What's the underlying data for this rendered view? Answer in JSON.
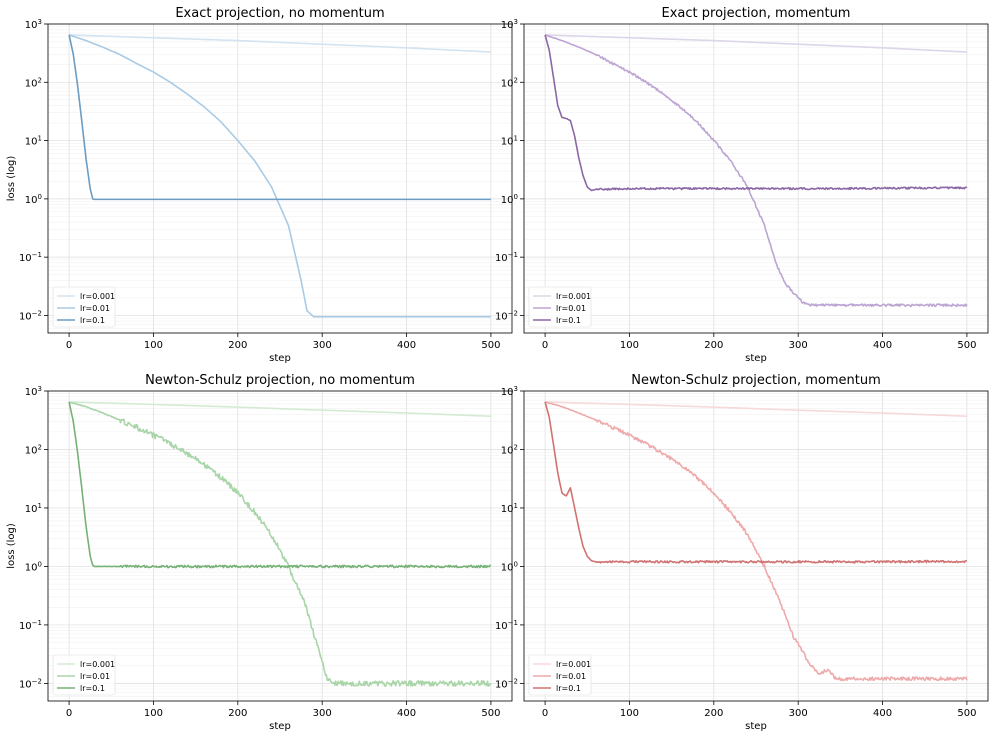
{
  "chart_data": [
    {
      "type": "line",
      "title": "Exact projection, no momentum",
      "xlabel": "step",
      "ylabel": "loss (log)",
      "yscale": "log",
      "xlim": [
        -25,
        525
      ],
      "ylim": [
        0.005,
        1000
      ],
      "xticks": [
        "0",
        "100",
        "200",
        "300",
        "400",
        "500"
      ],
      "yticks": [
        "10^3",
        "10^2",
        "10^1",
        "10^0",
        "10^-1",
        "10^-2"
      ],
      "legend": "lower-left",
      "grid": true,
      "series": [
        {
          "name": "lr=0.001",
          "color": "#d3e3f1",
          "x": [
            0,
            100,
            200,
            300,
            400,
            500
          ],
          "y": [
            650,
            580,
            520,
            450,
            390,
            330
          ]
        },
        {
          "name": "lr=0.01",
          "color": "#a9cae4",
          "x": [
            0,
            20,
            40,
            60,
            80,
            100,
            120,
            140,
            160,
            180,
            200,
            220,
            240,
            260,
            275,
            282,
            290,
            300,
            350,
            400,
            450,
            500
          ],
          "y": [
            650,
            520,
            400,
            300,
            210,
            150,
            100,
            63,
            38,
            21,
            10,
            4.5,
            1.6,
            0.35,
            0.04,
            0.012,
            0.0095,
            0.0095,
            0.0095,
            0.0095,
            0.0095,
            0.0095
          ]
        },
        {
          "name": "lr=0.1",
          "color": "#6b9cc3",
          "x": [
            0,
            5,
            10,
            15,
            20,
            25,
            28,
            30,
            40,
            100,
            200,
            300,
            400,
            500
          ],
          "y": [
            650,
            300,
            90,
            22,
            5,
            1.5,
            1.0,
            0.98,
            0.98,
            0.98,
            0.98,
            0.98,
            0.98,
            0.98
          ]
        }
      ]
    },
    {
      "type": "line",
      "title": "Exact projection, momentum",
      "xlabel": "step",
      "ylabel": "",
      "yscale": "log",
      "xlim": [
        -25,
        525
      ],
      "ylim": [
        0.005,
        1000
      ],
      "xticks": [
        "0",
        "100",
        "200",
        "300",
        "400",
        "500"
      ],
      "yticks": [
        "10^3",
        "10^2",
        "10^1",
        "10^0",
        "10^-1",
        "10^-2"
      ],
      "legend": "lower-left",
      "grid": true,
      "series": [
        {
          "name": "lr=0.001",
          "color": "#ddd5e9",
          "x": [
            0,
            100,
            200,
            300,
            400,
            500
          ],
          "y": [
            650,
            580,
            520,
            450,
            390,
            330
          ]
        },
        {
          "name": "lr=0.01",
          "color": "#bda5d3",
          "x": [
            0,
            20,
            40,
            60,
            80,
            100,
            120,
            140,
            160,
            180,
            200,
            220,
            240,
            260,
            275,
            285,
            295,
            305,
            315,
            350,
            400,
            450,
            500
          ],
          "y": [
            650,
            520,
            400,
            300,
            210,
            150,
            100,
            63,
            38,
            21,
            10,
            4.5,
            1.6,
            0.35,
            0.07,
            0.035,
            0.024,
            0.017,
            0.015,
            0.015,
            0.015,
            0.015,
            0.015
          ]
        },
        {
          "name": "lr=0.1",
          "color": "#8b67a6",
          "x": [
            0,
            5,
            10,
            15,
            20,
            25,
            30,
            35,
            40,
            45,
            50,
            55,
            60,
            100,
            200,
            300,
            400,
            500
          ],
          "y": [
            650,
            350,
            120,
            40,
            25,
            24,
            22,
            12,
            5,
            2.5,
            1.6,
            1.4,
            1.45,
            1.5,
            1.5,
            1.5,
            1.52,
            1.55
          ]
        }
      ]
    },
    {
      "type": "line",
      "title": "Newton-Schulz projection, no momentum",
      "xlabel": "step",
      "ylabel": "loss (log)",
      "yscale": "log",
      "xlim": [
        -25,
        525
      ],
      "ylim": [
        0.005,
        1000
      ],
      "xticks": [
        "0",
        "100",
        "200",
        "300",
        "400",
        "500"
      ],
      "yticks": [
        "10^3",
        "10^2",
        "10^1",
        "10^0",
        "10^-1",
        "10^-2"
      ],
      "legend": "lower-left",
      "grid": true,
      "series": [
        {
          "name": "lr=0.001",
          "color": "#d3ebd3",
          "x": [
            0,
            100,
            200,
            300,
            400,
            500
          ],
          "y": [
            650,
            590,
            530,
            470,
            420,
            370
          ]
        },
        {
          "name": "lr=0.01",
          "color": "#a9d5a9",
          "x": [
            0,
            20,
            40,
            60,
            80,
            100,
            120,
            140,
            160,
            180,
            200,
            220,
            240,
            260,
            280,
            295,
            305,
            312,
            320,
            350,
            400,
            450,
            500
          ],
          "y": [
            650,
            540,
            420,
            320,
            240,
            175,
            125,
            85,
            55,
            33,
            18,
            8.5,
            3.5,
            1.0,
            0.22,
            0.04,
            0.013,
            0.01,
            0.01,
            0.01,
            0.01,
            0.01,
            0.01
          ]
        },
        {
          "name": "lr=0.1",
          "color": "#76b176",
          "x": [
            0,
            5,
            10,
            15,
            20,
            25,
            28,
            30,
            40,
            100,
            200,
            300,
            400,
            500
          ],
          "y": [
            650,
            300,
            90,
            22,
            5,
            1.5,
            1.05,
            1.0,
            1.0,
            1.0,
            1.0,
            1.0,
            1.0,
            1.0
          ]
        }
      ]
    },
    {
      "type": "line",
      "title": "Newton-Schulz projection, momentum",
      "xlabel": "step",
      "ylabel": "",
      "yscale": "log",
      "xlim": [
        -25,
        525
      ],
      "ylim": [
        0.005,
        1000
      ],
      "xticks": [
        "0",
        "100",
        "200",
        "300",
        "400",
        "500"
      ],
      "yticks": [
        "10^3",
        "10^2",
        "10^1",
        "10^0",
        "10^-1",
        "10^-2"
      ],
      "legend": "lower-left",
      "grid": true,
      "series": [
        {
          "name": "lr=0.001",
          "color": "#f6d9d9",
          "x": [
            0,
            100,
            200,
            300,
            400,
            500
          ],
          "y": [
            650,
            590,
            530,
            470,
            420,
            370
          ]
        },
        {
          "name": "lr=0.01",
          "color": "#eeaaaa",
          "x": [
            0,
            20,
            40,
            60,
            80,
            100,
            120,
            140,
            160,
            180,
            200,
            220,
            240,
            260,
            280,
            295,
            305,
            315,
            325,
            335,
            345,
            400,
            450,
            500
          ],
          "y": [
            650,
            540,
            420,
            320,
            240,
            175,
            125,
            85,
            55,
            33,
            18,
            8.5,
            3.5,
            1.0,
            0.22,
            0.06,
            0.035,
            0.02,
            0.015,
            0.017,
            0.012,
            0.012,
            0.012,
            0.012
          ]
        },
        {
          "name": "lr=0.1",
          "color": "#d07272",
          "x": [
            0,
            5,
            10,
            15,
            20,
            25,
            30,
            35,
            40,
            45,
            50,
            55,
            60,
            100,
            200,
            300,
            400,
            500
          ],
          "y": [
            650,
            350,
            120,
            40,
            18,
            16,
            22,
            10,
            4.5,
            2.2,
            1.5,
            1.25,
            1.2,
            1.2,
            1.2,
            1.2,
            1.2,
            1.22
          ]
        }
      ]
    }
  ]
}
